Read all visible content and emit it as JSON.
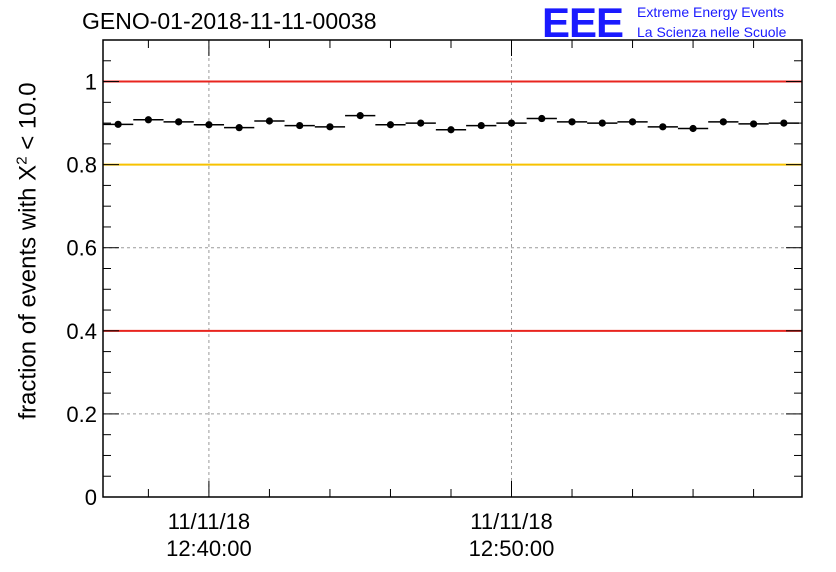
{
  "chart_data": {
    "type": "scatter",
    "title": "GENO-01-2018-11-11-00038",
    "ylabel_prefix": "fraction of events with ",
    "ylabel_chi": "X",
    "ylabel_exp": "2",
    "ylabel_suffix": " < 10.0",
    "ylim": [
      0,
      1.1
    ],
    "yticks": [
      "0",
      "0.2",
      "0.4",
      "0.6",
      "0.8",
      "1"
    ],
    "ytick_values": [
      0,
      0.2,
      0.4,
      0.6,
      0.8,
      1.0
    ],
    "xlim_minutes": [
      -3.5,
      19.6
    ],
    "xticks": [
      {
        "minute": 0,
        "date": "11/11/18",
        "time": "12:40:00"
      },
      {
        "minute": 10,
        "date": "11/11/18",
        "time": "12:50:00"
      }
    ],
    "bin_width_minutes": 1,
    "points_x_minutes": [
      -3,
      -2,
      -1,
      0,
      1,
      2,
      3,
      4,
      5,
      6,
      7,
      8,
      9,
      10,
      11,
      12,
      13,
      14,
      15,
      16,
      17,
      18,
      19
    ],
    "points_y": [
      0.897,
      0.908,
      0.903,
      0.896,
      0.889,
      0.905,
      0.894,
      0.891,
      0.918,
      0.896,
      0.9,
      0.884,
      0.894,
      0.9,
      0.911,
      0.903,
      0.9,
      0.903,
      0.891,
      0.887,
      0.903,
      0.898,
      0.9
    ],
    "reference_lines": [
      {
        "y": 1.0,
        "color": "#e8251f"
      },
      {
        "y": 0.8,
        "color": "#f7c200"
      },
      {
        "y": 0.4,
        "color": "#e8251f"
      }
    ],
    "grid": true
  },
  "logo": {
    "mark": "EEE",
    "line1": "Extreme Energy Events",
    "line2": "La Scienza nelle Scuole"
  }
}
